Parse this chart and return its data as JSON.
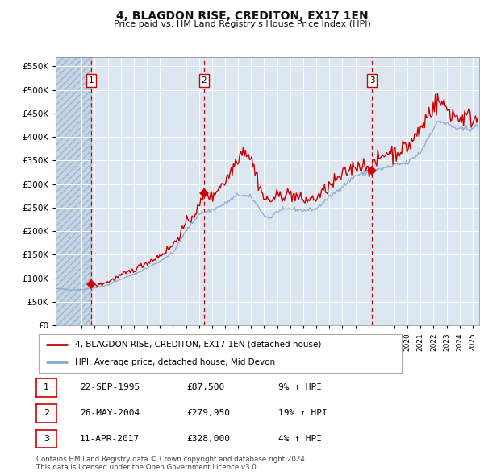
{
  "title": "4, BLAGDON RISE, CREDITON, EX17 1EN",
  "subtitle": "Price paid vs. HM Land Registry's House Price Index (HPI)",
  "ylabel_values": [
    0,
    50000,
    100000,
    150000,
    200000,
    250000,
    300000,
    350000,
    400000,
    450000,
    500000,
    550000
  ],
  "ylim": [
    0,
    570000
  ],
  "xlim_start": 1993.0,
  "xlim_end": 2025.5,
  "background_color": "#ffffff",
  "plot_bg_color": "#dce6f1",
  "hatch_color": "#c8d8e8",
  "grid_color": "#ffffff",
  "red_line_color": "#cc0000",
  "blue_line_color": "#88aacc",
  "purchase_dates": [
    1995.72,
    2004.39,
    2017.27
  ],
  "purchase_prices": [
    87500,
    279950,
    328000
  ],
  "purchase_labels": [
    "1",
    "2",
    "3"
  ],
  "dashed_line_color": "#cc0000",
  "legend_red_label": "4, BLAGDON RISE, CREDITON, EX17 1EN (detached house)",
  "legend_blue_label": "HPI: Average price, detached house, Mid Devon",
  "table_rows": [
    {
      "num": "1",
      "date": "22-SEP-1995",
      "price": "£87,500",
      "pct": "9% ↑ HPI"
    },
    {
      "num": "2",
      "date": "26-MAY-2004",
      "price": "£279,950",
      "pct": "19% ↑ HPI"
    },
    {
      "num": "3",
      "date": "11-APR-2017",
      "price": "£328,000",
      "pct": "4% ↑ HPI"
    }
  ],
  "footnote": "Contains HM Land Registry data © Crown copyright and database right 2024.\nThis data is licensed under the Open Government Licence v3.0."
}
